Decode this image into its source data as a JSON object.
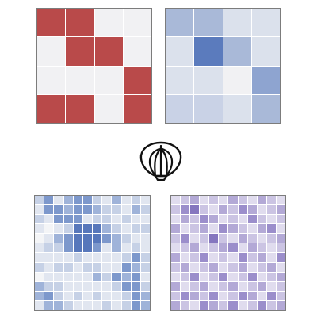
{
  "colors": {
    "red": "#b94a4a",
    "light": "#f1f1f3",
    "board_border": "#7c7c7c",
    "icon_stroke": "#111111"
  },
  "icon": {
    "name": "shell-icon"
  },
  "boards": [
    {
      "id": "puzzle-a",
      "rows": 4,
      "cols": 4,
      "palette": [
        "#f1f1f3",
        "#b94a4a"
      ],
      "cells": [
        [
          1,
          1,
          0,
          0
        ],
        [
          0,
          1,
          1,
          0
        ],
        [
          0,
          0,
          0,
          1
        ],
        [
          1,
          1,
          0,
          1
        ]
      ]
    },
    {
      "id": "puzzle-b",
      "rows": 4,
      "cols": 4,
      "palette": [
        "#f1f1f3",
        "#dbe1ec",
        "#c9d2e6",
        "#a9b9d8",
        "#8ea4d0",
        "#5b7bbd"
      ],
      "cells": [
        [
          3,
          3,
          1,
          1
        ],
        [
          1,
          5,
          3,
          1
        ],
        [
          1,
          1,
          0,
          4
        ],
        [
          2,
          2,
          1,
          3
        ]
      ]
    },
    {
      "id": "puzzle-c",
      "rows": 12,
      "cols": 12,
      "palette": [
        "#f4f5f7",
        "#e1e6f0",
        "#c6d1e6",
        "#9fb3d9",
        "#7d98cc",
        "#5777bb"
      ],
      "cells": [
        [
          2,
          4,
          1,
          3,
          4,
          4,
          2,
          1,
          3,
          1,
          2,
          1
        ],
        [
          1,
          4,
          4,
          3,
          4,
          4,
          3,
          2,
          2,
          1,
          3,
          2
        ],
        [
          2,
          1,
          4,
          4,
          4,
          1,
          2,
          2,
          1,
          2,
          1,
          1
        ],
        [
          1,
          0,
          1,
          2,
          5,
          5,
          5,
          3,
          2,
          1,
          2,
          2
        ],
        [
          0,
          1,
          3,
          4,
          5,
          5,
          5,
          4,
          3,
          2,
          1,
          1
        ],
        [
          1,
          2,
          2,
          4,
          5,
          5,
          4,
          1,
          3,
          1,
          2,
          1
        ],
        [
          1,
          1,
          1,
          1,
          2,
          1,
          1,
          1,
          1,
          2,
          4,
          2
        ],
        [
          2,
          1,
          2,
          2,
          1,
          2,
          2,
          1,
          1,
          4,
          3,
          2
        ],
        [
          0,
          1,
          1,
          1,
          1,
          1,
          3,
          2,
          4,
          3,
          4,
          1
        ],
        [
          3,
          2,
          2,
          1,
          1,
          1,
          1,
          1,
          2,
          4,
          4,
          2
        ],
        [
          3,
          4,
          2,
          1,
          2,
          1,
          2,
          1,
          1,
          2,
          4,
          3
        ],
        [
          1,
          3,
          3,
          2,
          1,
          1,
          1,
          2,
          1,
          2,
          4,
          3
        ]
      ]
    },
    {
      "id": "puzzle-d",
      "rows": 12,
      "cols": 12,
      "palette": [
        "#f2f0f7",
        "#e0dcee",
        "#cbc4e3",
        "#b3a9d6",
        "#9b8ecb",
        "#8576bf"
      ],
      "cells": [
        [
          1,
          2,
          3,
          1,
          2,
          1,
          3,
          2,
          1,
          3,
          2,
          1
        ],
        [
          2,
          4,
          5,
          2,
          1,
          3,
          2,
          4,
          3,
          1,
          2,
          3
        ],
        [
          1,
          3,
          2,
          4,
          3,
          1,
          2,
          1,
          4,
          2,
          1,
          2
        ],
        [
          3,
          1,
          2,
          3,
          1,
          4,
          3,
          2,
          1,
          3,
          4,
          1
        ],
        [
          2,
          4,
          1,
          2,
          5,
          2,
          1,
          3,
          2,
          1,
          2,
          3
        ],
        [
          1,
          2,
          3,
          1,
          2,
          3,
          4,
          1,
          3,
          2,
          1,
          2
        ],
        [
          3,
          1,
          2,
          4,
          1,
          2,
          1,
          4,
          2,
          3,
          1,
          4
        ],
        [
          2,
          3,
          1,
          2,
          3,
          1,
          2,
          3,
          1,
          2,
          3,
          1
        ],
        [
          1,
          2,
          4,
          1,
          2,
          4,
          1,
          2,
          4,
          1,
          2,
          3
        ],
        [
          3,
          1,
          2,
          3,
          1,
          2,
          3,
          1,
          2,
          3,
          1,
          2
        ],
        [
          2,
          4,
          3,
          2,
          4,
          1,
          2,
          4,
          3,
          1,
          4,
          2
        ],
        [
          3,
          2,
          1,
          4,
          3,
          2,
          4,
          1,
          2,
          4,
          2,
          3
        ]
      ]
    }
  ]
}
